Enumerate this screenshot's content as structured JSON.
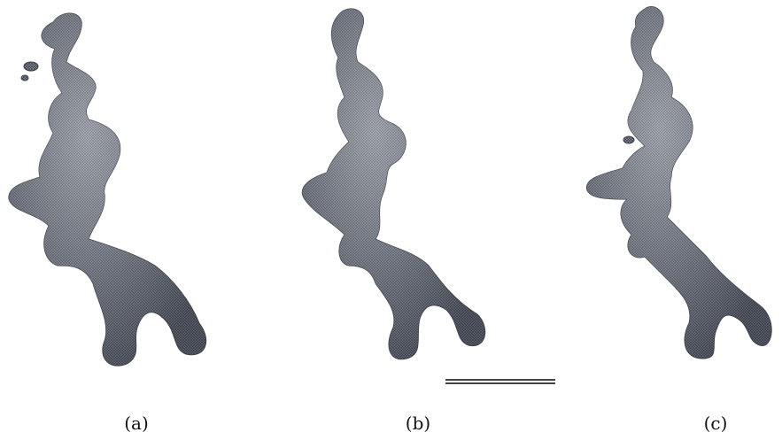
{
  "figure": {
    "panels": [
      {
        "caption": "(a)"
      },
      {
        "caption": "(b)"
      },
      {
        "caption": "(c)"
      }
    ],
    "colors": {
      "surface": "#8a909c",
      "surface_dark": "#4c525e",
      "mesh": "#2b2f37",
      "background": "#ffffff"
    }
  }
}
